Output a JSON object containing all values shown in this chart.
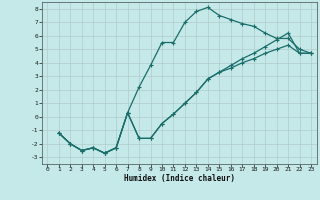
{
  "xlabel": "Humidex (Indice chaleur)",
  "bg_color": "#c5e8e8",
  "grid_color": "#b0cccc",
  "line_color": "#1a6e6a",
  "xlim": [
    -0.5,
    23.5
  ],
  "ylim": [
    -3.5,
    8.5
  ],
  "xticks": [
    0,
    1,
    2,
    3,
    4,
    5,
    6,
    7,
    8,
    9,
    10,
    11,
    12,
    13,
    14,
    15,
    16,
    17,
    18,
    19,
    20,
    21,
    22,
    23
  ],
  "yticks": [
    -3,
    -2,
    -1,
    0,
    1,
    2,
    3,
    4,
    5,
    6,
    7,
    8
  ],
  "line1_x": [
    1,
    2,
    3,
    4,
    5,
    6,
    7,
    8,
    9,
    10,
    11,
    12,
    13,
    14,
    15,
    16,
    17,
    18,
    19,
    20,
    21,
    22,
    23
  ],
  "line1_y": [
    -1.2,
    -2.0,
    -2.5,
    -2.3,
    -2.7,
    -2.3,
    0.3,
    2.2,
    3.8,
    5.5,
    5.5,
    7.0,
    7.8,
    8.1,
    7.5,
    7.2,
    6.9,
    6.7,
    6.2,
    5.8,
    5.8,
    5.0,
    4.7
  ],
  "line2_x": [
    1,
    2,
    3,
    4,
    5,
    6,
    7,
    8,
    9,
    10,
    11,
    12,
    13,
    14,
    15,
    16,
    17,
    18,
    19,
    20,
    21,
    22,
    23
  ],
  "line2_y": [
    -1.2,
    -2.0,
    -2.5,
    -2.3,
    -2.7,
    -2.3,
    0.3,
    -1.6,
    -1.6,
    -0.5,
    0.2,
    1.0,
    1.8,
    2.8,
    3.3,
    3.8,
    4.3,
    4.7,
    5.2,
    5.7,
    6.2,
    4.7,
    4.7
  ],
  "line3_x": [
    1,
    2,
    3,
    4,
    5,
    6,
    7,
    8,
    9,
    10,
    11,
    12,
    13,
    14,
    15,
    16,
    17,
    18,
    19,
    20,
    21,
    22,
    23
  ],
  "line3_y": [
    -1.2,
    -2.0,
    -2.5,
    -2.3,
    -2.7,
    -2.3,
    0.3,
    -1.6,
    -1.6,
    -0.5,
    0.2,
    1.0,
    1.8,
    2.8,
    3.3,
    3.6,
    4.0,
    4.3,
    4.7,
    5.0,
    5.3,
    4.7,
    4.7
  ]
}
